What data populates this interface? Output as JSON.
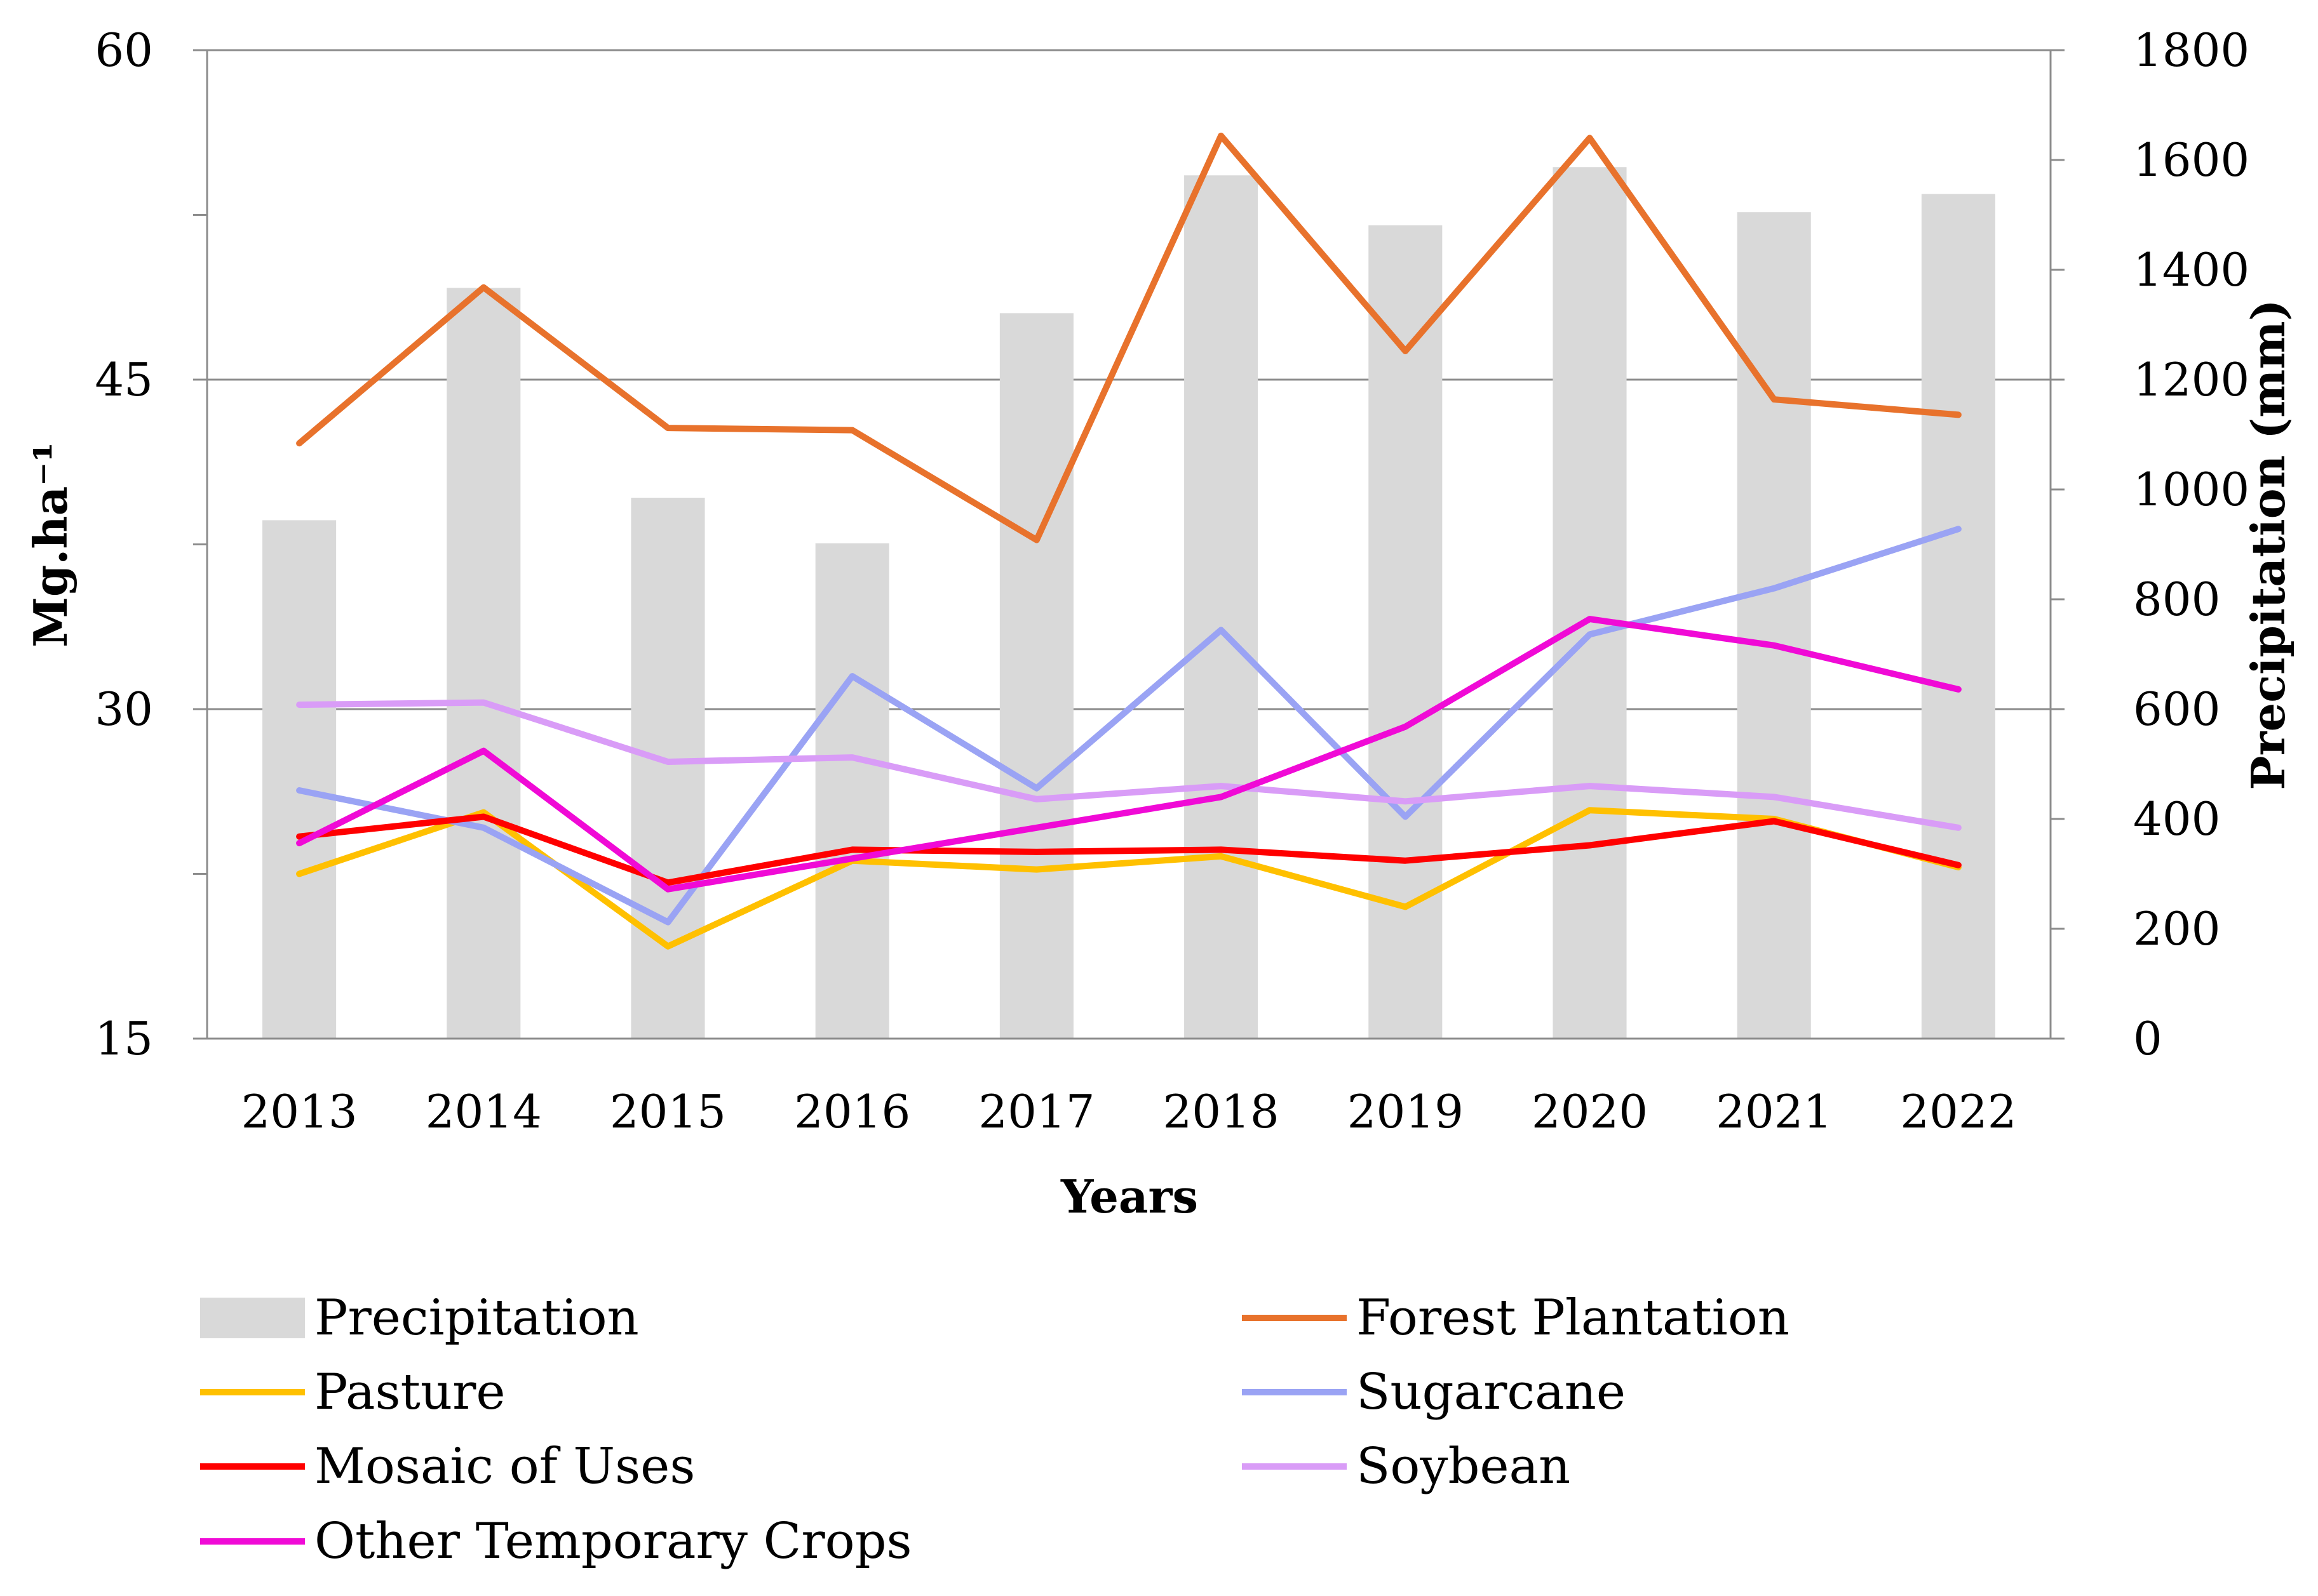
{
  "chart_data": {
    "type": "bar+line",
    "categories": [
      "2013",
      "2014",
      "2015",
      "2016",
      "2017",
      "2018",
      "2019",
      "2020",
      "2021",
      "2022"
    ],
    "xlabel": "Years",
    "ylabel": "Mg.ha⁻¹",
    "y2label": "Precipitation (mm)",
    "ylim": [
      15,
      60
    ],
    "yticks": [
      "15",
      "30",
      "45",
      "60"
    ],
    "y2lim": [
      0,
      1800
    ],
    "y2ticks": [
      "0",
      "200",
      "400",
      "600",
      "800",
      "1000",
      "1200",
      "1400",
      "1600",
      "1800"
    ],
    "grid": true,
    "legend_position": "bottom",
    "bar_series": {
      "name": "Precipitation",
      "axis": "right",
      "color": "#d9d9d9",
      "values": [
        944,
        1367,
        985,
        902,
        1321,
        1572,
        1481,
        1587,
        1505,
        1538
      ]
    },
    "line_series": [
      {
        "name": "Forest Plantation",
        "color": "#e8722c",
        "values": [
          42.1,
          49.2,
          42.8,
          42.7,
          37.7,
          56.1,
          46.3,
          56.0,
          44.1,
          43.4
        ]
      },
      {
        "name": "Pasture",
        "color": "#ffc000",
        "values": [
          22.5,
          25.3,
          19.2,
          23.1,
          22.7,
          23.3,
          21.0,
          25.4,
          25.0,
          22.8
        ]
      },
      {
        "name": "Sugarcane",
        "color": "#9aa3f4",
        "values": [
          26.3,
          24.6,
          20.3,
          31.5,
          26.4,
          33.6,
          25.1,
          33.4,
          35.5,
          38.2
        ]
      },
      {
        "name": "Mosaic of Uses",
        "color": "#ff0000",
        "values": [
          24.2,
          25.1,
          22.1,
          23.6,
          23.5,
          23.6,
          23.1,
          23.8,
          24.9,
          22.9
        ]
      },
      {
        "name": "Soybean",
        "color": "#d99cf7",
        "values": [
          30.2,
          30.3,
          27.6,
          27.8,
          25.9,
          26.5,
          25.8,
          26.5,
          26.0,
          24.6
        ]
      },
      {
        "name": "Other Temporary Crops",
        "color": "#f00ad6",
        "values": [
          23.9,
          28.1,
          21.8,
          23.2,
          24.6,
          26.0,
          29.2,
          34.1,
          32.9,
          30.9
        ]
      }
    ],
    "legend": [
      "Precipitation",
      "Forest Plantation",
      "Pasture",
      "Sugarcane",
      "Mosaic of Uses",
      "Soybean",
      "Other Temporary Crops"
    ]
  }
}
